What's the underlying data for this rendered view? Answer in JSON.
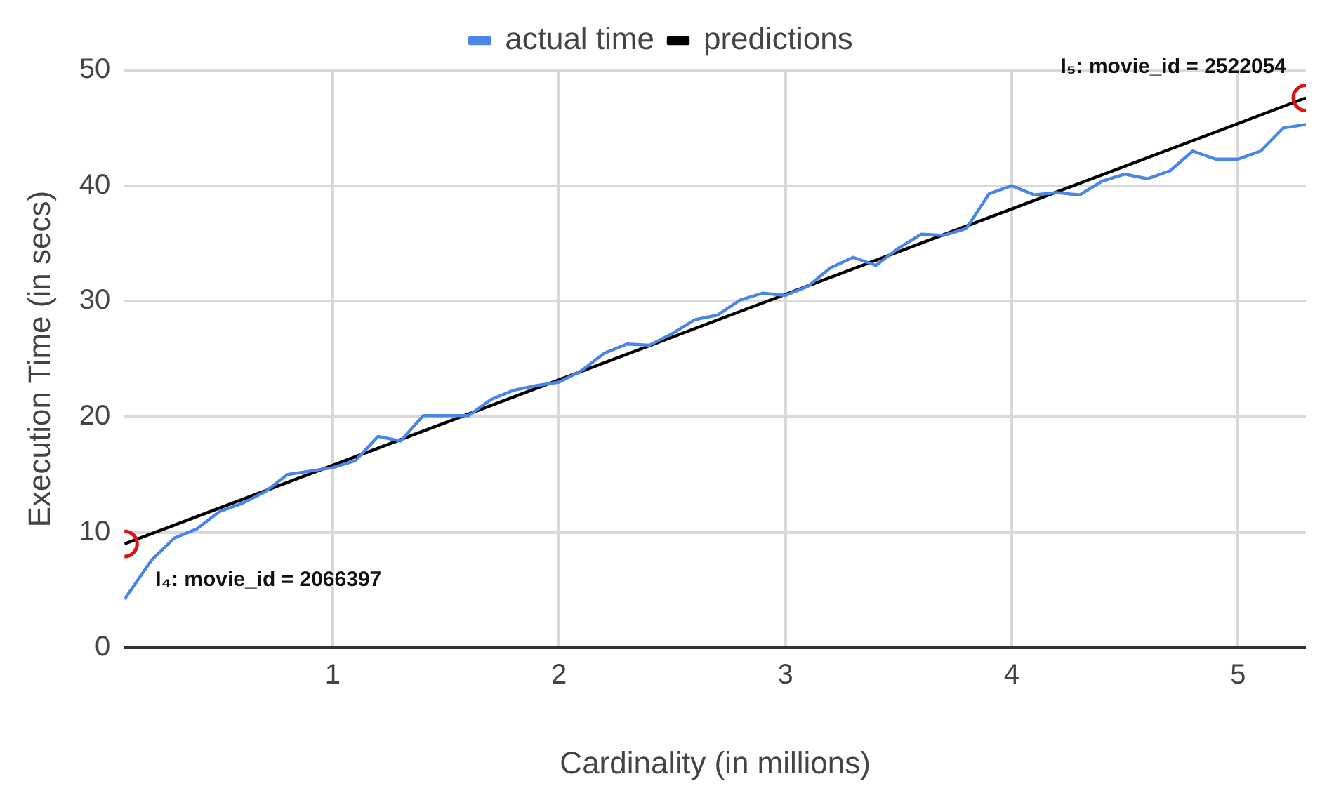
{
  "chart_data": {
    "type": "line",
    "xlabel": "Cardinality (in millions)",
    "ylabel": "Execution Time (in secs)",
    "xlim": [
      0.08,
      5.3
    ],
    "xticks": [
      1,
      2,
      3,
      4,
      5
    ],
    "ylim": [
      0,
      50
    ],
    "yticks": [
      0,
      10,
      20,
      30,
      40,
      50
    ],
    "grid": true,
    "legend": "top",
    "series": [
      {
        "name": "actual time",
        "color": "#4a86e8",
        "marker": "none",
        "x": [
          0.08,
          0.2,
          0.3,
          0.4,
          0.5,
          0.6,
          0.7,
          0.8,
          0.9,
          1.0,
          1.1,
          1.2,
          1.3,
          1.4,
          1.5,
          1.6,
          1.7,
          1.8,
          1.9,
          2.0,
          2.1,
          2.2,
          2.3,
          2.4,
          2.5,
          2.6,
          2.7,
          2.8,
          2.9,
          3.0,
          3.1,
          3.2,
          3.3,
          3.4,
          3.5,
          3.6,
          3.7,
          3.8,
          3.9,
          4.0,
          4.1,
          4.2,
          4.3,
          4.4,
          4.5,
          4.6,
          4.7,
          4.8,
          4.9,
          5.0,
          5.1,
          5.2,
          5.3
        ],
        "values": [
          4.2,
          7.6,
          9.5,
          10.3,
          11.8,
          12.5,
          13.5,
          15,
          15.3,
          15.6,
          16.2,
          18.3,
          17.9,
          20.1,
          20.1,
          20.1,
          21.5,
          22.3,
          22.7,
          23,
          24,
          25.5,
          26.3,
          26.2,
          27.2,
          28.4,
          28.8,
          30.1,
          30.7,
          30.5,
          31.3,
          32.9,
          33.8,
          33.1,
          34.6,
          35.8,
          35.7,
          36.3,
          39.3,
          40,
          39.2,
          39.4,
          39.2,
          40.4,
          41,
          40.6,
          41.3,
          43,
          42.3,
          42.3,
          43,
          45,
          45.3
        ]
      },
      {
        "name": "predictions",
        "color": "#000000",
        "marker": "circle",
        "x": [
          0.08,
          5.3
        ],
        "values": [
          9,
          47.6
        ]
      }
    ],
    "annotations": [
      {
        "text": "I₄: movie_id = 2066397",
        "x": 0.08,
        "y": 9
      },
      {
        "text": "I₅: movie_id = 2522054",
        "x": 5.3,
        "y": 47.6
      }
    ]
  }
}
